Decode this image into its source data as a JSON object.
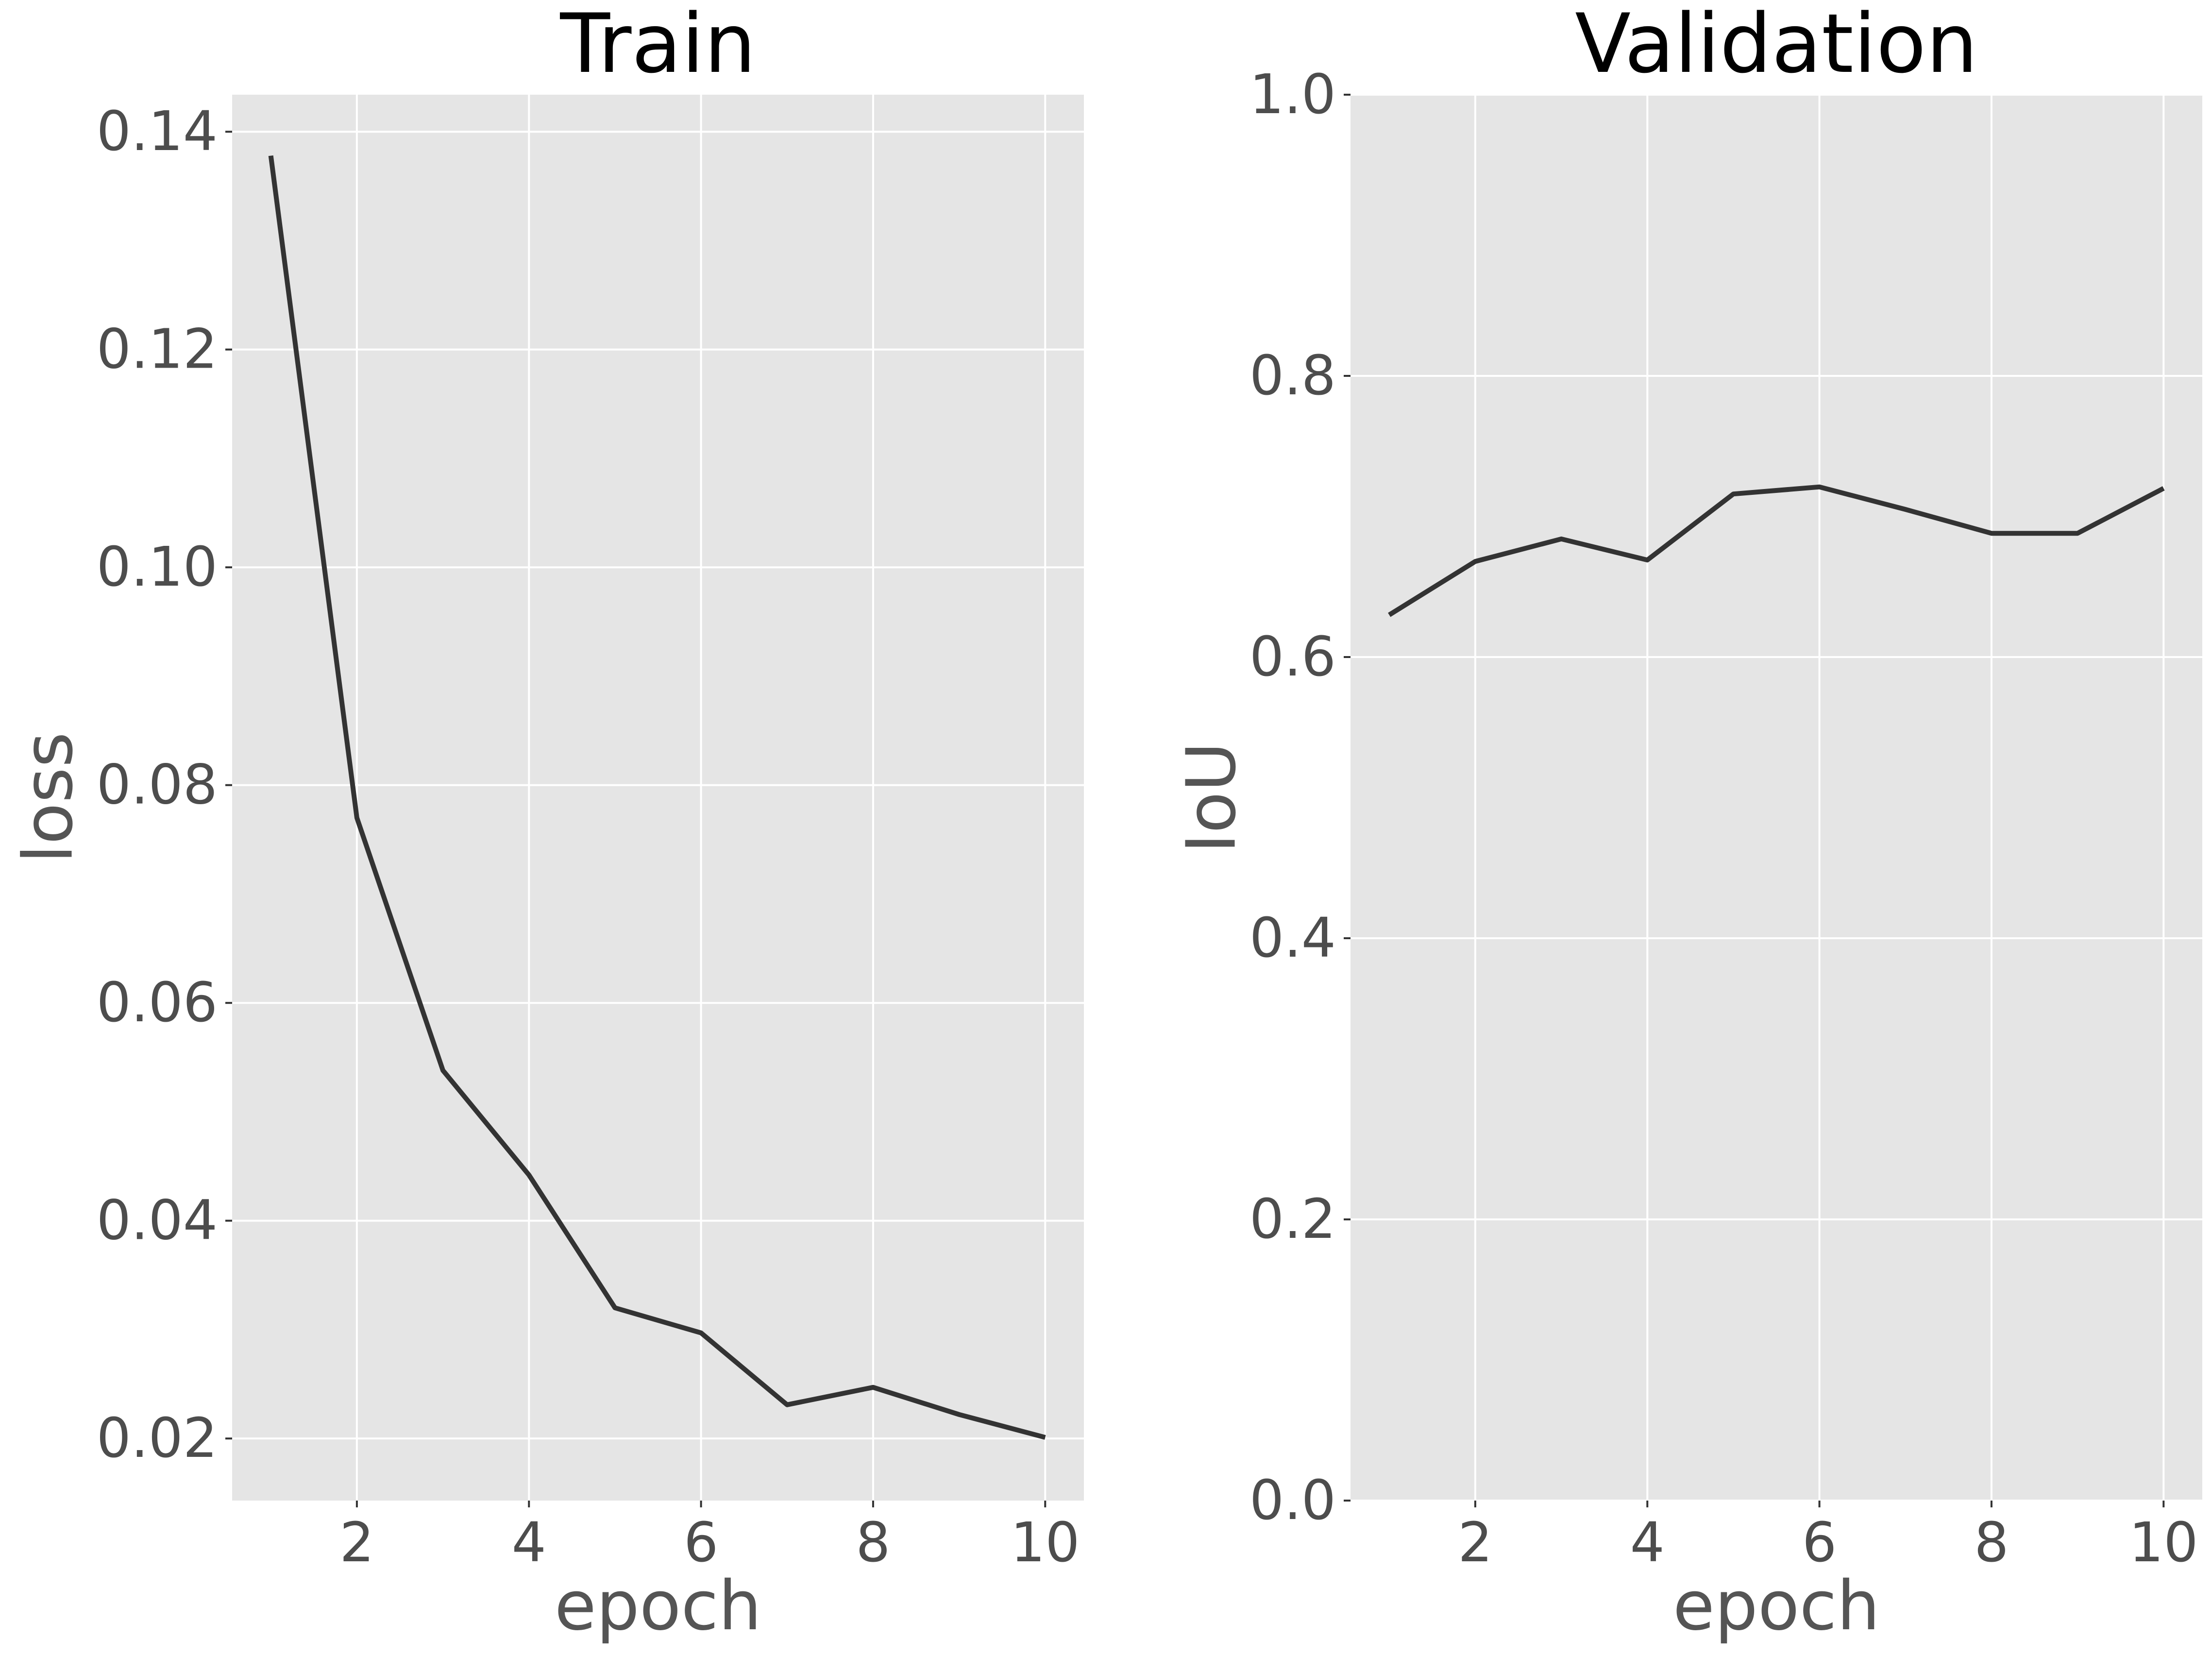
{
  "chart_data": [
    {
      "type": "line",
      "title": "Train",
      "xlabel": "epoch",
      "ylabel": "loss",
      "x": [
        1,
        2,
        3,
        4,
        5,
        6,
        7,
        8,
        9,
        10
      ],
      "series": [
        {
          "values": [
            0.1378,
            0.077,
            0.0538,
            0.0442,
            0.032,
            0.0297,
            0.0231,
            0.0247,
            0.0222,
            0.0201
          ]
        }
      ],
      "xlim": [
        0.55,
        10.45
      ],
      "ylim": [
        0.0143,
        0.1434
      ],
      "xticks": [
        2,
        4,
        6,
        8,
        10
      ],
      "xtick_labels": [
        "2",
        "4",
        "6",
        "8",
        "10"
      ],
      "yticks": [
        0.02,
        0.04,
        0.06,
        0.08,
        0.1,
        0.12,
        0.14
      ],
      "ytick_labels": [
        "0.02",
        "0.04",
        "0.06",
        "0.08",
        "0.10",
        "0.12",
        "0.14"
      ],
      "grid": true,
      "legend": "none"
    },
    {
      "type": "line",
      "title": "Validation",
      "xlabel": "epoch",
      "ylabel": "IoU",
      "x": [
        1,
        2,
        3,
        4,
        5,
        6,
        7,
        8,
        9,
        10
      ],
      "series": [
        {
          "values": [
            0.63,
            0.668,
            0.684,
            0.669,
            0.716,
            0.721,
            0.705,
            0.688,
            0.688,
            0.72
          ]
        }
      ],
      "xlim": [
        0.55,
        10.45
      ],
      "ylim": [
        0.0,
        1.0
      ],
      "xticks": [
        2,
        4,
        6,
        8,
        10
      ],
      "xtick_labels": [
        "2",
        "4",
        "6",
        "8",
        "10"
      ],
      "yticks": [
        0.0,
        0.2,
        0.4,
        0.6,
        0.8,
        1.0
      ],
      "ytick_labels": [
        "0.0",
        "0.2",
        "0.4",
        "0.6",
        "0.8",
        "1.0"
      ],
      "grid": true,
      "legend": "none"
    }
  ],
  "colors": {
    "panel_background": "#e5e5e5",
    "grid": "#ffffff",
    "line": "#333333",
    "tick": "#333333"
  }
}
